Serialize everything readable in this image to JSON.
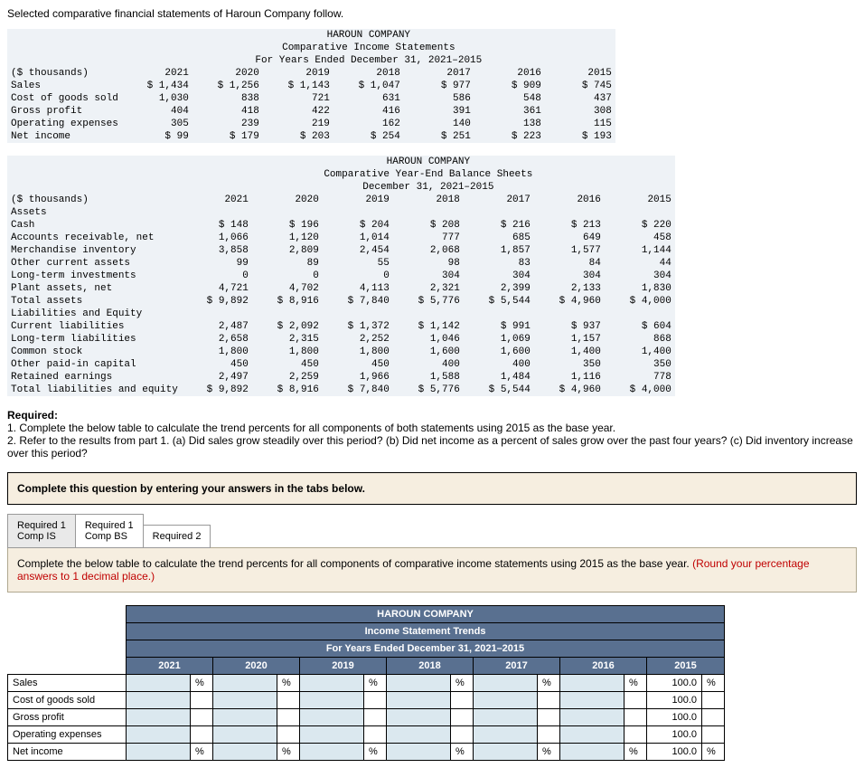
{
  "intro": "Selected comparative financial statements of Haroun Company follow.",
  "is": {
    "title": "HAROUN COMPANY",
    "sub1": "Comparative Income Statements",
    "sub2": "For Years Ended December 31, 2021–2015",
    "units": "($ thousands)",
    "years": [
      "2021",
      "2020",
      "2019",
      "2018",
      "2017",
      "2016",
      "2015"
    ],
    "rows": [
      {
        "label": "Sales",
        "v": [
          "$ 1,434",
          "$ 1,256",
          "$ 1,143",
          "$ 1,047",
          "$ 977",
          "$ 909",
          "$ 745"
        ]
      },
      {
        "label": "Cost of goods sold",
        "v": [
          "1,030",
          "838",
          "721",
          "631",
          "586",
          "548",
          "437"
        ],
        "bb": true
      },
      {
        "label": "Gross profit",
        "v": [
          "404",
          "418",
          "422",
          "416",
          "391",
          "361",
          "308"
        ]
      },
      {
        "label": "Operating expenses",
        "v": [
          "305",
          "239",
          "219",
          "162",
          "140",
          "138",
          "115"
        ],
        "bb": true
      },
      {
        "label": "Net income",
        "v": [
          "$ 99",
          "$ 179",
          "$ 203",
          "$ 254",
          "$ 251",
          "$ 223",
          "$ 193"
        ],
        "dbl": true
      }
    ]
  },
  "bs": {
    "title": "HAROUN COMPANY",
    "sub1": "Comparative Year-End Balance Sheets",
    "sub2": "December 31, 2021–2015",
    "units": "($ thousands)",
    "years": [
      "2021",
      "2020",
      "2019",
      "2018",
      "2017",
      "2016",
      "2015"
    ],
    "sections": [
      {
        "heading": "Assets",
        "rows": [
          {
            "label": "Cash",
            "v": [
              "$ 148",
              "$ 196",
              "$ 204",
              "$ 208",
              "$ 216",
              "$ 213",
              "$ 220"
            ]
          },
          {
            "label": "Accounts receivable, net",
            "v": [
              "1,066",
              "1,120",
              "1,014",
              "777",
              "685",
              "649",
              "458"
            ]
          },
          {
            "label": "Merchandise inventory",
            "v": [
              "3,858",
              "2,809",
              "2,454",
              "2,068",
              "1,857",
              "1,577",
              "1,144"
            ]
          },
          {
            "label": "Other current assets",
            "v": [
              "99",
              "89",
              "55",
              "98",
              "83",
              "84",
              "44"
            ]
          },
          {
            "label": "Long-term investments",
            "v": [
              "0",
              "0",
              "0",
              "304",
              "304",
              "304",
              "304"
            ]
          },
          {
            "label": "Plant assets, net",
            "v": [
              "4,721",
              "4,702",
              "4,113",
              "2,321",
              "2,399",
              "2,133",
              "1,830"
            ],
            "bb": true
          },
          {
            "label": "Total assets",
            "v": [
              "$ 9,892",
              "$ 8,916",
              "$ 7,840",
              "$ 5,776",
              "$ 5,544",
              "$ 4,960",
              "$ 4,000"
            ],
            "dbl": true
          }
        ]
      },
      {
        "heading": "Liabilities and Equity",
        "rows": [
          {
            "label": "Current liabilities",
            "v": [
              "2,487",
              "$ 2,092",
              "$ 1,372",
              "$ 1,142",
              "$ 991",
              "$ 937",
              "$ 604"
            ]
          },
          {
            "label": "Long-term liabilities",
            "v": [
              "2,658",
              "2,315",
              "2,252",
              "1,046",
              "1,069",
              "1,157",
              "868"
            ]
          },
          {
            "label": "Common stock",
            "v": [
              "1,800",
              "1,800",
              "1,800",
              "1,600",
              "1,600",
              "1,400",
              "1,400"
            ]
          },
          {
            "label": "Other paid-in capital",
            "v": [
              "450",
              "450",
              "450",
              "400",
              "400",
              "350",
              "350"
            ]
          },
          {
            "label": "Retained earnings",
            "v": [
              "2,497",
              "2,259",
              "1,966",
              "1,588",
              "1,484",
              "1,116",
              "778"
            ],
            "bb": true
          },
          {
            "label": "Total liabilities and equity",
            "v": [
              "$ 9,892",
              "$ 8,916",
              "$ 7,840",
              "$ 5,776",
              "$ 5,544",
              "$ 4,960",
              "$ 4,000"
            ],
            "dbl": true
          }
        ]
      }
    ]
  },
  "req": {
    "heading": "Required:",
    "l1": "1. Complete the below table to calculate the trend percents for all components of both statements using 2015 as the base year.",
    "l2": "2. Refer to the results from part 1. (a) Did sales grow steadily over this period? (b) Did net income as a percent of sales grow over the past four years? (c) Did inventory increase over this period?"
  },
  "tan_prompt": "Complete this question by entering your answers in the tabs below.",
  "tabs": [
    {
      "l1": "Required 1",
      "l2": "Comp IS",
      "active": true
    },
    {
      "l1": "Required 1",
      "l2": "Comp BS",
      "active": false
    },
    {
      "l1": "Required 2",
      "l2": "",
      "active": false
    }
  ],
  "instr": {
    "main": "Complete the below table to calculate the trend percents for all components of comparative income statements using 2015 as the base year. ",
    "red": "(Round your percentage answers to 1 decimal place.)"
  },
  "trend": {
    "title": "HAROUN COMPANY",
    "sub1": "Income Statement Trends",
    "sub2": "For Years Ended December 31, 2021–2015",
    "years": [
      "2021",
      "2020",
      "2019",
      "2018",
      "2017",
      "2016",
      "2015"
    ],
    "rows": [
      {
        "label": "Sales",
        "pct": true,
        "base": "100.0",
        "basepct": "%"
      },
      {
        "label": "Cost of goods sold",
        "pct": false,
        "base": "100.0",
        "basepct": ""
      },
      {
        "label": "Gross profit",
        "pct": false,
        "base": "100.0",
        "basepct": ""
      },
      {
        "label": "Operating expenses",
        "pct": false,
        "base": "100.0",
        "basepct": ""
      },
      {
        "label": "Net income",
        "pct": true,
        "base": "100.0",
        "basepct": "%"
      }
    ]
  }
}
